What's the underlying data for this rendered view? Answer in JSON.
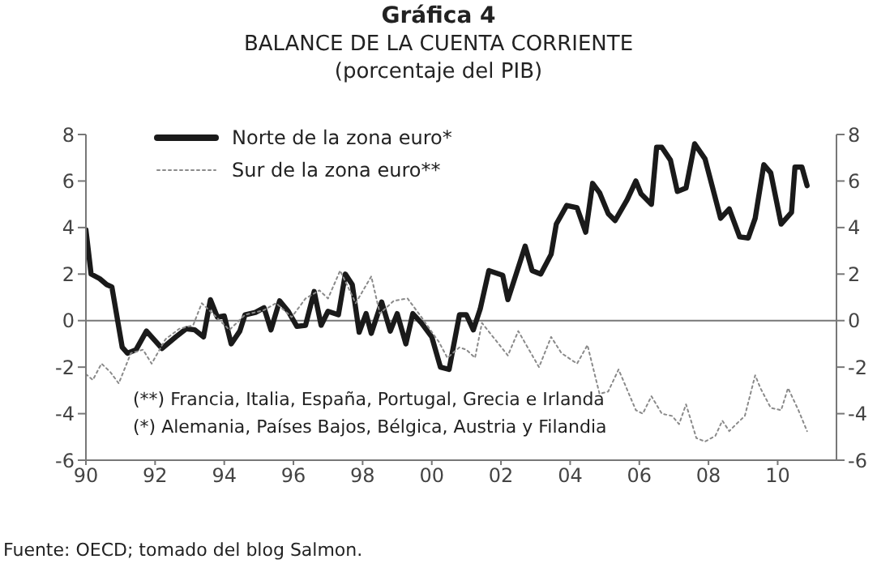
{
  "chart_data": {
    "type": "line",
    "title": "Gráfica 4",
    "subtitle": "BALANCE DE LA CUENTA CORRIENTE\n(porcentaje del PIB)",
    "annotations": [
      "(**) Francia, Italia, España, Portugal, Grecia e Irlanda",
      "(*) Alemania, Países Bajos, Bélgica, Austria y Filandia",
      "Fuente: OECD; tomado del blog Salmon."
    ],
    "series": [
      {
        "name": "Norte de la zona euro*",
        "color": "#1a1a1a",
        "line_style": "solid",
        "x": [
          1990.0,
          1990.15,
          1990.4,
          1990.6,
          1990.75,
          1991.05,
          1991.2,
          1991.45,
          1991.75,
          1992.2,
          1992.6,
          1992.9,
          1993.15,
          1993.4,
          1993.6,
          1993.8,
          1994.0,
          1994.2,
          1994.45,
          1994.6,
          1994.9,
          1995.15,
          1995.35,
          1995.6,
          1995.85,
          1996.1,
          1996.35,
          1996.6,
          1996.8,
          1997.0,
          1997.3,
          1997.5,
          1997.7,
          1997.9,
          1998.1,
          1998.25,
          1998.55,
          1998.8,
          1999.0,
          1999.25,
          1999.45,
          1999.7,
          2000.0,
          2000.25,
          2000.5,
          2000.8,
          2001.0,
          2001.2,
          2001.4,
          2001.65,
          2002.05,
          2002.2,
          2002.7,
          2002.9,
          2003.15,
          2003.45,
          2003.6,
          2003.9,
          2004.2,
          2004.45,
          2004.65,
          2004.85,
          2005.1,
          2005.3,
          2005.65,
          2005.9,
          2006.05,
          2006.35,
          2006.5,
          2006.65,
          2006.9,
          2007.1,
          2007.35,
          2007.6,
          2007.9,
          2008.35,
          2008.6,
          2008.9,
          2009.15,
          2009.35,
          2009.6,
          2009.8,
          2010.1,
          2010.4,
          2010.5,
          2010.7,
          2010.85
        ],
        "values": [
          3.9,
          2.0,
          1.8,
          1.55,
          1.45,
          -1.15,
          -1.4,
          -1.25,
          -0.45,
          -1.2,
          -0.7,
          -0.35,
          -0.4,
          -0.7,
          0.9,
          0.15,
          0.2,
          -1.0,
          -0.45,
          0.25,
          0.35,
          0.55,
          -0.4,
          0.85,
          0.4,
          -0.25,
          -0.2,
          1.25,
          -0.2,
          0.4,
          0.25,
          2.0,
          1.55,
          -0.5,
          0.3,
          -0.55,
          0.8,
          -0.45,
          0.3,
          -1.0,
          0.3,
          -0.1,
          -0.7,
          -2.0,
          -2.1,
          0.25,
          0.25,
          -0.4,
          0.5,
          2.15,
          1.95,
          0.9,
          3.2,
          2.15,
          2.0,
          2.85,
          4.15,
          4.95,
          4.85,
          3.8,
          5.9,
          5.5,
          4.6,
          4.3,
          5.2,
          6.0,
          5.45,
          5.0,
          7.45,
          7.45,
          6.9,
          5.55,
          5.7,
          7.6,
          6.95,
          4.4,
          4.8,
          3.6,
          3.55,
          4.4,
          6.7,
          6.35,
          4.15,
          4.65,
          6.6,
          6.6,
          5.8
        ]
      },
      {
        "name": "Sur de la zona euro**",
        "color": "#8a8a8a",
        "line_style": "dotted",
        "x": [
          1990.0,
          1990.2,
          1990.45,
          1990.7,
          1990.95,
          1991.3,
          1991.65,
          1991.9,
          1992.3,
          1992.7,
          1993.1,
          1993.35,
          1993.7,
          1994.15,
          1994.6,
          1995.15,
          1995.5,
          1995.95,
          1996.35,
          1996.75,
          1997.0,
          1997.35,
          1997.8,
          1998.25,
          1998.5,
          1998.9,
          1999.3,
          1999.7,
          2000.1,
          2000.2,
          2000.45,
          2000.8,
          2001.0,
          2001.25,
          2001.45,
          2002.2,
          2002.5,
          2003.1,
          2003.45,
          2003.75,
          2004.2,
          2004.5,
          2004.85,
          2005.1,
          2005.4,
          2005.9,
          2006.1,
          2006.35,
          2006.65,
          2006.95,
          2007.15,
          2007.35,
          2007.65,
          2007.9,
          2008.2,
          2008.4,
          2008.6,
          2008.8,
          2009.05,
          2009.35,
          2009.5,
          2009.8,
          2010.1,
          2010.3,
          2010.6,
          2010.85
        ],
        "values": [
          -2.3,
          -2.55,
          -1.85,
          -2.2,
          -2.7,
          -1.4,
          -1.25,
          -1.85,
          -0.8,
          -0.35,
          -0.2,
          0.75,
          0.25,
          -0.4,
          0.25,
          0.45,
          0.75,
          0.15,
          0.95,
          1.3,
          0.95,
          2.15,
          0.75,
          1.9,
          0.3,
          0.85,
          0.95,
          0.15,
          -0.7,
          -0.9,
          -1.6,
          -1.15,
          -1.25,
          -1.6,
          -0.1,
          -1.5,
          -0.45,
          -2.0,
          -0.7,
          -1.4,
          -1.85,
          -1.05,
          -3.15,
          -3.05,
          -2.1,
          -3.85,
          -4.0,
          -3.25,
          -4.0,
          -4.1,
          -4.45,
          -3.6,
          -5.05,
          -5.2,
          -4.95,
          -4.3,
          -4.75,
          -4.45,
          -4.1,
          -2.35,
          -2.9,
          -3.75,
          -3.85,
          -2.9,
          -3.85,
          -4.75
        ]
      }
    ],
    "xlim": [
      1990,
      2011.7
    ],
    "xticks": [
      {
        "value": 1990,
        "label": "90"
      },
      {
        "value": 1992,
        "label": "92"
      },
      {
        "value": 1994,
        "label": "94"
      },
      {
        "value": 1996,
        "label": "96"
      },
      {
        "value": 1998,
        "label": "98"
      },
      {
        "value": 2000,
        "label": "00"
      },
      {
        "value": 2002,
        "label": "02"
      },
      {
        "value": 2004,
        "label": "04"
      },
      {
        "value": 2006,
        "label": "06"
      },
      {
        "value": 2008,
        "label": "08"
      },
      {
        "value": 2010,
        "label": "10"
      }
    ],
    "ylim": [
      -6,
      8
    ],
    "yticks": [
      -6,
      -4,
      -2,
      0,
      2,
      4,
      6,
      8
    ],
    "y2lim": [
      -6,
      8
    ],
    "y2ticks": [
      -6,
      -4,
      -2,
      0,
      2,
      4,
      6,
      8
    ],
    "ref_lines": [
      {
        "axis": "y",
        "value": 0,
        "color": "#777777"
      }
    ],
    "grid": false,
    "legend": "top left",
    "marker": "none"
  }
}
